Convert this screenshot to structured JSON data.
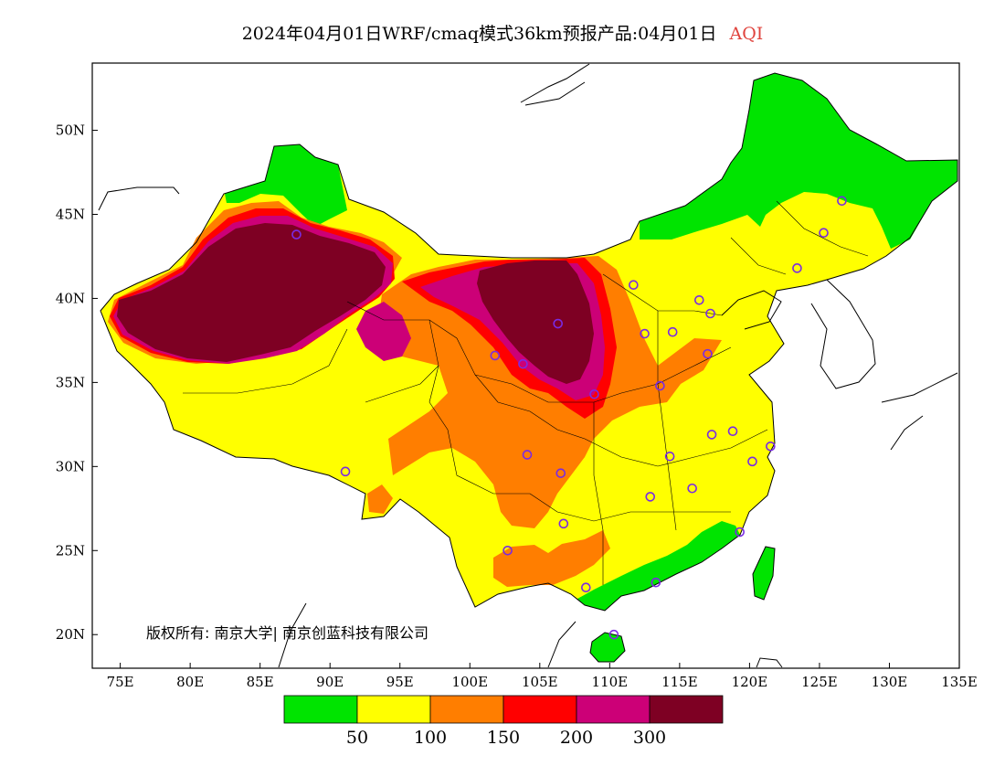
{
  "title": {
    "main": "2024年04月01日WRF/cmaq模式36km预报产品:04月01日",
    "variable": "AQI"
  },
  "axes": {
    "lon_labels": [
      "75E",
      "80E",
      "85E",
      "90E",
      "95E",
      "100E",
      "105E",
      "110E",
      "115E",
      "120E",
      "125E",
      "130E",
      "135E"
    ],
    "lat_labels": [
      "20N",
      "25N",
      "30N",
      "35N",
      "40N",
      "45N",
      "50N"
    ],
    "lon_range": [
      73,
      135
    ],
    "lat_range": [
      18,
      54
    ]
  },
  "copyright": "版权所有: 南京大学| 南京创蓝科技有限公司",
  "colorbar": {
    "thresholds": [
      "50",
      "100",
      "150",
      "200",
      "300"
    ],
    "colors": [
      "#00e400",
      "#ffff00",
      "#ff7e00",
      "#ff0000",
      "#cc0077",
      "#7e0023"
    ]
  },
  "chart_data": {
    "type": "heatmap",
    "title": "2024年04月01日WRF/cmaq模式36km预报产品:04月01日 AQI",
    "xlabel": "",
    "ylabel": "",
    "xlim": [
      73,
      135
    ],
    "ylim": [
      18,
      54
    ],
    "stations": [
      {
        "lon": 87.6,
        "lat": 43.8
      },
      {
        "lon": 91.1,
        "lat": 29.7
      },
      {
        "lon": 101.8,
        "lat": 36.6
      },
      {
        "lon": 103.8,
        "lat": 36.1
      },
      {
        "lon": 106.3,
        "lat": 38.5
      },
      {
        "lon": 108.9,
        "lat": 34.3
      },
      {
        "lon": 104.1,
        "lat": 30.7
      },
      {
        "lon": 106.5,
        "lat": 29.6
      },
      {
        "lon": 106.7,
        "lat": 26.6
      },
      {
        "lon": 102.7,
        "lat": 25.0
      },
      {
        "lon": 108.3,
        "lat": 22.8
      },
      {
        "lon": 110.3,
        "lat": 20.0
      },
      {
        "lon": 113.3,
        "lat": 23.1
      },
      {
        "lon": 112.9,
        "lat": 28.2
      },
      {
        "lon": 114.3,
        "lat": 30.6
      },
      {
        "lon": 115.9,
        "lat": 28.7
      },
      {
        "lon": 113.6,
        "lat": 34.8
      },
      {
        "lon": 112.5,
        "lat": 37.9
      },
      {
        "lon": 114.5,
        "lat": 38.0
      },
      {
        "lon": 117.2,
        "lat": 39.1
      },
      {
        "lon": 116.4,
        "lat": 39.9
      },
      {
        "lon": 111.7,
        "lat": 40.8
      },
      {
        "lon": 117.0,
        "lat": 36.7
      },
      {
        "lon": 117.3,
        "lat": 31.9
      },
      {
        "lon": 118.8,
        "lat": 32.1
      },
      {
        "lon": 120.2,
        "lat": 30.3
      },
      {
        "lon": 121.5,
        "lat": 31.2
      },
      {
        "lon": 119.3,
        "lat": 26.1
      },
      {
        "lon": 123.4,
        "lat": 41.8
      },
      {
        "lon": 125.3,
        "lat": 43.9
      },
      {
        "lon": 126.6,
        "lat": 45.8
      }
    ]
  }
}
